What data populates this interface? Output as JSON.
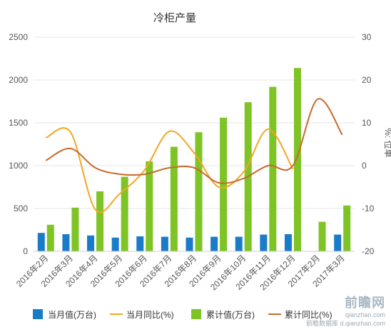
{
  "chart_data": {
    "type": "bar+line",
    "title": "冷柜产量",
    "ylabel_right": "%: 位单",
    "categories": [
      "2016年2月",
      "2016年3月",
      "2016年4月",
      "2016年5月",
      "2016年6月",
      "2016年7月",
      "2016年8月",
      "2016年9月",
      "2016年10月",
      "2016年11月",
      "2016年12月",
      "2017年2月",
      "2017年3月"
    ],
    "ylim_left": [
      0,
      2500
    ],
    "yticks_left": [
      0,
      500,
      1000,
      1500,
      2000,
      2500
    ],
    "ylim_right": [
      -20,
      30
    ],
    "yticks_right": [
      -20,
      -10,
      0,
      10,
      20,
      30
    ],
    "series": [
      {
        "name": "当月值(万台)",
        "type": "bar",
        "axis": "left",
        "color": "#1a7cc9",
        "values": [
          215,
          200,
          185,
          160,
          175,
          170,
          160,
          170,
          170,
          195,
          200,
          null,
          195
        ]
      },
      {
        "name": "当月同比(%)",
        "type": "line",
        "axis": "right",
        "color": "#f5a623",
        "values": [
          6.5,
          7.8,
          -10.2,
          -6.5,
          -1,
          8,
          3,
          -5,
          -1.5,
          8.5,
          -0.8,
          null,
          null
        ]
      },
      {
        "name": "累计值(万台)",
        "type": "bar",
        "axis": "left",
        "color": "#7ec424",
        "values": [
          310,
          510,
          700,
          870,
          1050,
          1220,
          1390,
          1560,
          1740,
          1920,
          2140,
          345,
          535
        ]
      },
      {
        "name": "累计同比(%)",
        "type": "line",
        "axis": "right",
        "color": "#c8692a",
        "values": [
          1.2,
          4,
          -0.5,
          -2,
          -2,
          -0.5,
          -0.5,
          -4,
          -3,
          0,
          0,
          15.5,
          7.2
        ]
      }
    ],
    "legend_position": "bottom",
    "grid": true
  },
  "watermark": {
    "logo": "前瞻网",
    "site": "qianzhan.com",
    "sub": "前瞻数据库 d.qianzhan.com"
  }
}
